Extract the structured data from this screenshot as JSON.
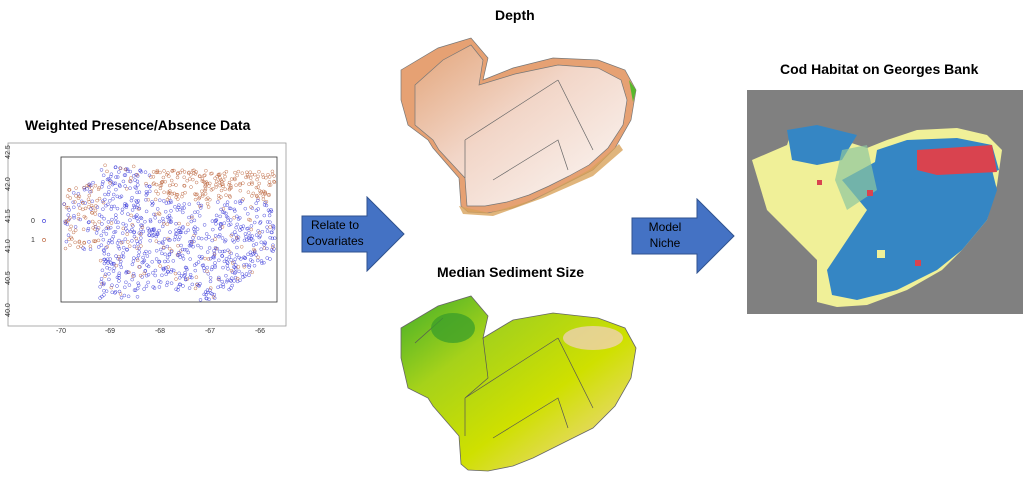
{
  "titles": {
    "presence": "Weighted Presence/Absence Data",
    "depth": "Depth",
    "sediment": "Median Sediment Size",
    "habitat": "Cod Habitat on Georges Bank"
  },
  "arrows": {
    "relate_line1": "Relate to",
    "relate_line2": "Covariates",
    "model_line1": "Model",
    "model_line2": "Niche"
  },
  "scatter": {
    "x_ticks": [
      "-70",
      "-69",
      "-68",
      "-67",
      "-66"
    ],
    "y_ticks": [
      "42.5",
      "42.0",
      "41.5",
      "41.0",
      "40.5",
      "40.0"
    ],
    "legend": [
      "0",
      "1"
    ],
    "colors": {
      "absence": "#2b2bd6",
      "presence": "#b5562b"
    }
  },
  "colors": {
    "arrow": "#4472c4",
    "depth_shallow": "#f5e3dc",
    "depth_deep": "#e3a57a",
    "sediment_fine": "#cfe000",
    "sediment_coarse": "#3fae2a",
    "habitat_background": "#808080",
    "habitat_low": "#3586c4",
    "habitat_mid": "#f5f5a0",
    "habitat_high": "#d9434f"
  }
}
